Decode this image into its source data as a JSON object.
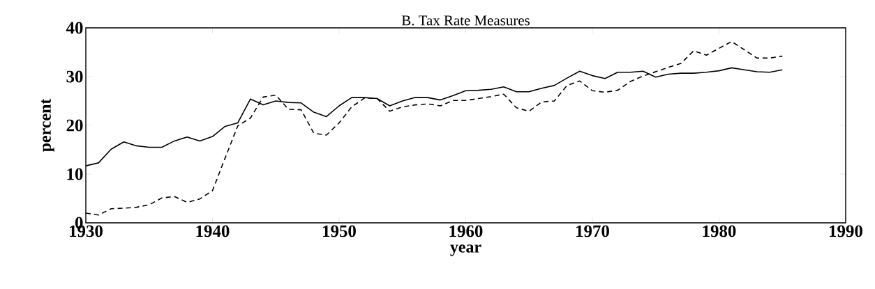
{
  "chart_data": {
    "type": "line",
    "title": "B. Tax Rate Measures",
    "xlabel": "year",
    "ylabel": "percent",
    "x": [
      1930,
      1931,
      1932,
      1933,
      1934,
      1935,
      1936,
      1937,
      1938,
      1939,
      1940,
      1941,
      1942,
      1943,
      1944,
      1945,
      1946,
      1947,
      1948,
      1949,
      1950,
      1951,
      1952,
      1953,
      1954,
      1955,
      1956,
      1957,
      1958,
      1959,
      1960,
      1961,
      1962,
      1963,
      1964,
      1965,
      1966,
      1967,
      1968,
      1969,
      1970,
      1971,
      1972,
      1973,
      1974,
      1975,
      1976,
      1977,
      1978,
      1979,
      1980,
      1981,
      1982,
      1983,
      1984,
      1985
    ],
    "series": [
      {
        "color": "#000000",
        "line_style": "solid",
        "values": [
          11.7,
          12.3,
          15.1,
          16.6,
          15.8,
          15.5,
          15.5,
          16.8,
          17.6,
          16.8,
          17.7,
          19.8,
          20.5,
          25.4,
          24.2,
          25,
          24.7,
          24.6,
          22.7,
          21.8,
          24,
          25.7,
          25.7,
          25.5,
          24,
          25,
          25.7,
          25.7,
          25.2,
          26.1,
          27.1,
          27.2,
          27.4,
          27.9,
          26.9,
          26.9,
          27.6,
          28.2,
          29.7,
          31.1,
          30.2,
          29.6,
          30.9,
          30.9,
          31.1,
          29.9,
          30.5,
          30.7,
          30.7,
          30.9,
          31.2,
          31.8,
          31.4,
          31,
          30.9,
          31.4
        ]
      },
      {
        "color": "#000000",
        "line_style": "dashed",
        "values": [
          2,
          1.6,
          2.9,
          3,
          3.2,
          3.7,
          5.1,
          5.4,
          4.2,
          4.9,
          6.6,
          13.3,
          19.9,
          21.5,
          25.8,
          26.2,
          23.3,
          23.2,
          18.4,
          18,
          20.5,
          23.8,
          25.6,
          25.5,
          22.9,
          23.8,
          24.2,
          24.4,
          24,
          25.1,
          25.1,
          25.5,
          25.9,
          26.4,
          23.6,
          22.9,
          24.8,
          25,
          28.2,
          29.1,
          27.1,
          26.8,
          27.2,
          29,
          30.1,
          31,
          31.9,
          32.7,
          35.3,
          34.4,
          35.8,
          37.2,
          35.5,
          33.8,
          33.8,
          34.2
        ]
      }
    ],
    "xlim": [
      1930,
      1990
    ],
    "xticks": [
      1930,
      1940,
      1950,
      1960,
      1970,
      1980,
      1990
    ],
    "ylim": [
      0,
      40
    ],
    "yticks": [
      0,
      10,
      20,
      30,
      40
    ],
    "grid": false
  }
}
